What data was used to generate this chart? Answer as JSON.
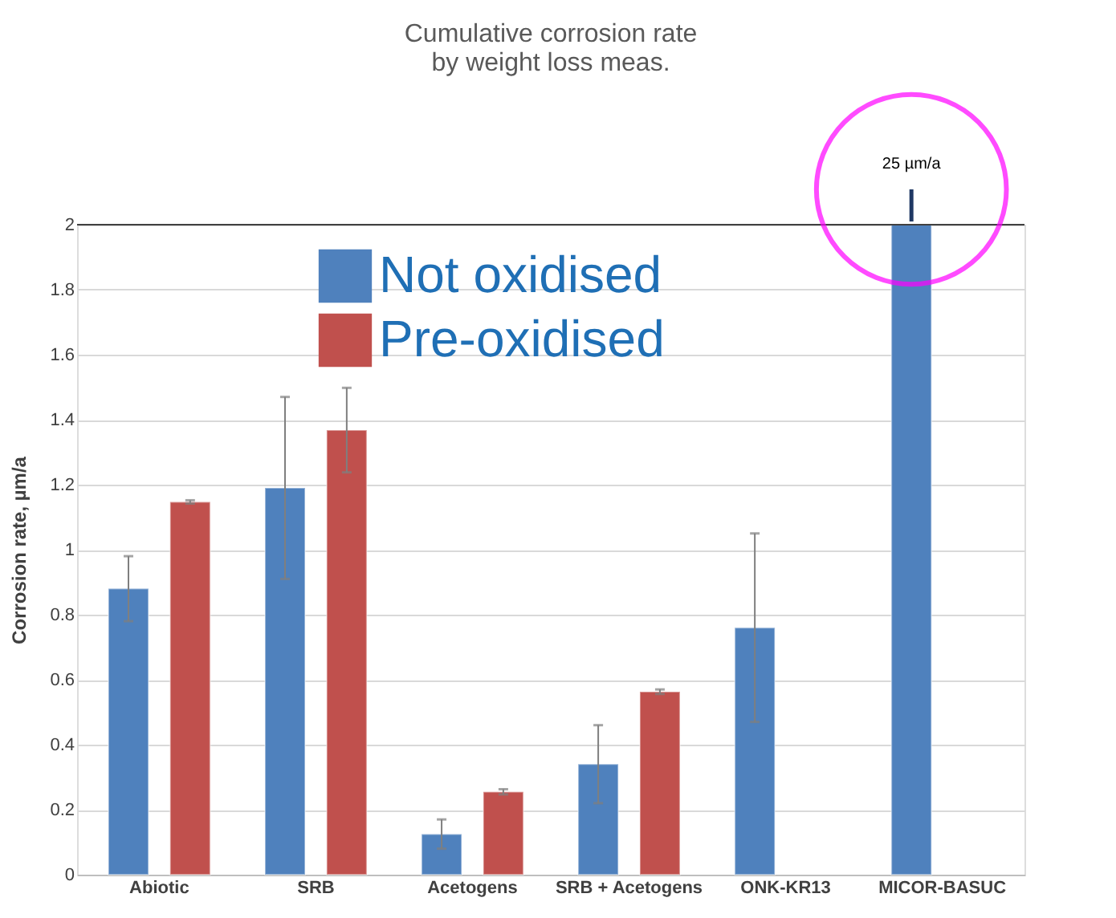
{
  "chart_data": {
    "type": "bar",
    "title": [
      "Cumulative corrosion rate",
      "by weight loss meas."
    ],
    "ylabel": "Corrosion rate, µm/a",
    "categories": [
      "Abiotic",
      "SRB",
      "Acetogens",
      "SRB + Acetogens",
      "ONK-KR13",
      "MICOR-BASUC"
    ],
    "series": [
      {
        "name": "Not oxidised",
        "color": "#4f81bd",
        "values": [
          0.88,
          1.19,
          0.125,
          0.34,
          0.76,
          2.0
        ],
        "errors": [
          0.1,
          0.28,
          0.045,
          0.12,
          0.29,
          null
        ]
      },
      {
        "name": "Pre-oxidised",
        "color": "#c0504d",
        "values": [
          1.147,
          1.368,
          0.255,
          0.563,
          null,
          null
        ],
        "errors": [
          0.005,
          0.13,
          0.008,
          0.007,
          null,
          null
        ]
      }
    ],
    "ylim": [
      0,
      2
    ],
    "yticks": [
      0,
      0.2,
      0.4,
      0.6,
      0.8,
      1,
      1.2,
      1.4,
      1.6,
      1.8,
      2
    ],
    "grid": "y",
    "legend": "top left",
    "annotations": [
      "25 µm/a"
    ]
  }
}
